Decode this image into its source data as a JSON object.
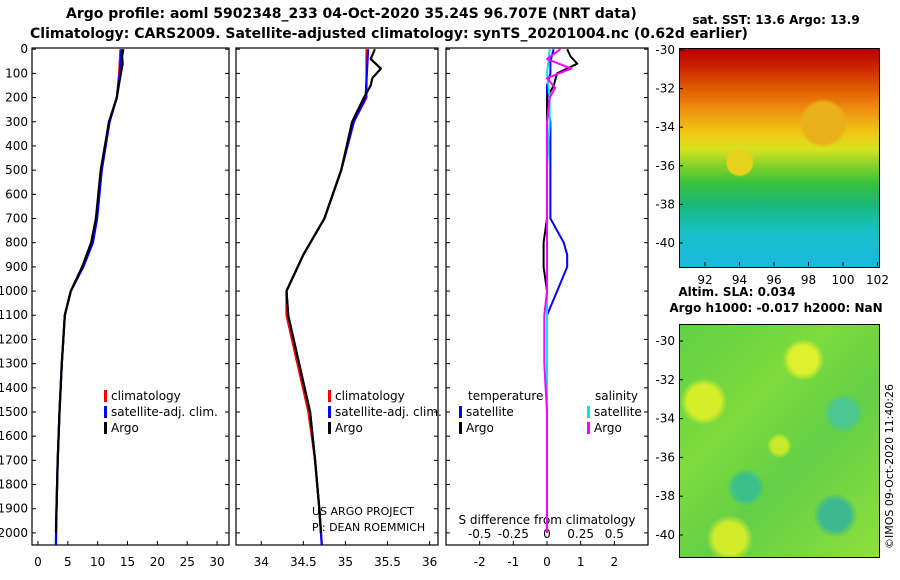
{
  "title": {
    "line1": "Argo profile: aoml 5902348_233 04-Oct-2020 35.24S 96.707E (NRT data)",
    "line2": "Climatology: CARS2009. Satellite-adjusted climatology: synTS_20201004.nc (0.62d earlier)"
  },
  "colors": {
    "climatology": "#ff0000",
    "satellite": "#0000ff",
    "argo": "#000000",
    "sal_satellite": "#00e5e5",
    "sal_argo": "#ff00ff"
  },
  "chart_data": [
    {
      "type": "line",
      "name": "temperature-profile",
      "ylim": [
        2050,
        -5
      ],
      "xlim": [
        -1,
        32
      ],
      "yticks": [
        "0",
        "100",
        "200",
        "300",
        "400",
        "500",
        "600",
        "700",
        "800",
        "900",
        "1000",
        "1100",
        "1200",
        "1300",
        "1400",
        "1500",
        "1600",
        "1700",
        "1800",
        "1900",
        "2000"
      ],
      "xticks": [
        "0",
        "5",
        "10",
        "15",
        "20",
        "25",
        "30"
      ],
      "legend": [
        "climatology",
        "satellite-adj. clim.",
        "Argo"
      ],
      "series": [
        {
          "name": "climatology",
          "depth": [
            0,
            100,
            200,
            300,
            500,
            700,
            800,
            900,
            1000,
            1100,
            1300,
            1500,
            1700,
            1900,
            2050
          ],
          "values": [
            13.8,
            13.6,
            13.2,
            11.9,
            10.6,
            9.8,
            9.0,
            7.5,
            5.5,
            4.5,
            4.0,
            3.6,
            3.3,
            3.1,
            3.0
          ]
        },
        {
          "name": "satellite-adj. clim.",
          "depth": [
            0,
            100,
            200,
            300,
            500,
            700,
            800,
            900,
            1000,
            1100,
            1300,
            1500,
            1700,
            1900,
            2050
          ],
          "values": [
            14.0,
            13.7,
            13.2,
            12.0,
            10.7,
            9.9,
            9.2,
            7.6,
            5.5,
            4.5,
            4.0,
            3.6,
            3.3,
            3.1,
            3.0
          ]
        },
        {
          "name": "Argo",
          "depth": [
            0,
            30,
            60,
            100,
            140,
            200,
            300,
            500,
            700,
            800,
            900,
            1000,
            1100,
            1300,
            1500,
            1700,
            1900,
            2000
          ],
          "values": [
            14.3,
            14.1,
            14.2,
            13.9,
            13.6,
            13.2,
            11.9,
            10.5,
            9.7,
            8.9,
            7.4,
            5.5,
            4.5,
            4.0,
            3.6,
            3.3,
            3.1,
            3.0
          ]
        }
      ]
    },
    {
      "type": "line",
      "name": "salinity-profile",
      "ylim": [
        2050,
        -5
      ],
      "xlim": [
        33.7,
        36.1
      ],
      "xticks": [
        "34",
        "34.5",
        "35",
        "35.5",
        "36"
      ],
      "legend": [
        "climatology",
        "satellite-adj. clim.",
        "Argo"
      ],
      "series": [
        {
          "name": "climatology",
          "depth": [
            0,
            200,
            300,
            500,
            700,
            850,
            1000,
            1100,
            1300,
            1500,
            1700,
            1900,
            2050
          ],
          "values": [
            35.25,
            35.25,
            35.1,
            34.95,
            34.75,
            34.5,
            34.3,
            34.3,
            34.43,
            34.56,
            34.64,
            34.69,
            34.72
          ]
        },
        {
          "name": "satellite-adj. clim.",
          "depth": [
            0,
            200,
            300,
            500,
            700,
            850,
            1000,
            1100,
            1300,
            1500,
            1700,
            1900,
            2050
          ],
          "values": [
            35.27,
            35.24,
            35.1,
            34.95,
            34.75,
            34.5,
            34.3,
            34.32,
            34.45,
            34.58,
            34.64,
            34.69,
            34.72
          ]
        },
        {
          "name": "Argo",
          "depth": [
            0,
            40,
            80,
            120,
            150,
            200,
            300,
            500,
            700,
            850,
            1000,
            1100,
            1300,
            1500,
            1700,
            1900,
            2000
          ],
          "values": [
            35.35,
            35.3,
            35.42,
            35.32,
            35.3,
            35.22,
            35.08,
            34.95,
            34.75,
            34.5,
            34.3,
            34.32,
            34.45,
            34.58,
            34.64,
            34.69,
            34.71
          ]
        }
      ]
    },
    {
      "type": "line",
      "name": "difference-from-climatology",
      "ylim": [
        2050,
        -5
      ],
      "xlim": [
        -3.0,
        3.0
      ],
      "xticks_temp": [
        "-2",
        "-1",
        "0",
        "1",
        "2"
      ],
      "xticks_sal": [
        "-0.5",
        "-0.25",
        "0",
        "0.25",
        "0.5"
      ],
      "xlabel": "S difference from climatology",
      "legend_temperature_title": "temperature",
      "legend_salinity_title": "salinity",
      "legend_temperature": [
        "satellite",
        "Argo"
      ],
      "legend_salinity": [
        "satellite",
        "Argo"
      ],
      "series": [
        {
          "name": "temperature satellite",
          "depth": [
            0,
            50,
            100,
            150,
            200,
            300,
            500,
            700,
            800,
            850,
            900,
            1000,
            1100,
            1300,
            1500,
            1700,
            1900,
            2000
          ],
          "values": [
            0.2,
            0.1,
            0.1,
            0.0,
            0.0,
            0.1,
            0.1,
            0.1,
            0.5,
            0.6,
            0.6,
            0.3,
            0.0,
            0.0,
            0.0,
            0.0,
            0.0,
            0.0
          ]
        },
        {
          "name": "temperature Argo",
          "depth": [
            0,
            30,
            60,
            100,
            150,
            200,
            300,
            500,
            700,
            800,
            850,
            900,
            1000,
            1100,
            1300,
            1500,
            1700,
            1900,
            2000
          ],
          "values": [
            0.6,
            0.7,
            0.9,
            0.3,
            0.2,
            0.0,
            0.0,
            0.0,
            0.0,
            -0.1,
            -0.1,
            -0.1,
            0.0,
            0.0,
            0.0,
            0.0,
            0.0,
            0.0,
            0.0
          ]
        },
        {
          "name": "salinity satellite",
          "depth": [
            0,
            100,
            200,
            300,
            500,
            700,
            900,
            1100,
            1300,
            1500,
            1700,
            1900,
            2000
          ],
          "values": [
            0.02,
            0.0,
            0.02,
            0.02,
            0.0,
            0.0,
            0.0,
            0.0,
            0.0,
            0.0,
            0.0,
            0.0,
            0.0
          ]
        },
        {
          "name": "salinity Argo",
          "depth": [
            0,
            40,
            80,
            120,
            160,
            200,
            300,
            500,
            700,
            900,
            1000,
            1100,
            1300,
            1500,
            1700,
            1900,
            2000
          ],
          "values": [
            0.1,
            0.0,
            0.18,
            0.0,
            0.06,
            0.02,
            0.0,
            0.0,
            0.0,
            0.0,
            0.0,
            -0.02,
            -0.02,
            0.0,
            0.0,
            0.0,
            0.0
          ]
        }
      ]
    }
  ],
  "annotations": {
    "project": "US ARGO PROJECT",
    "pi": "PI: DEAN ROEMMICH",
    "copyright": "©IMOS 09-Oct-2020 11:40:26"
  },
  "sst_map": {
    "title": "sat. SST: 13.6 Argo: 13.9",
    "yticks": [
      "-30",
      "-32",
      "-34",
      "-36",
      "-38",
      "-40"
    ],
    "xticks": [
      "92",
      "94",
      "96",
      "98",
      "100",
      "102"
    ]
  },
  "sla_map": {
    "title1": "Altim. SLA: 0.034",
    "title2": "Argo h1000: -0.017 h2000: NaN",
    "yticks": [
      "-30",
      "-32",
      "-34",
      "-36",
      "-38",
      "-40"
    ]
  }
}
